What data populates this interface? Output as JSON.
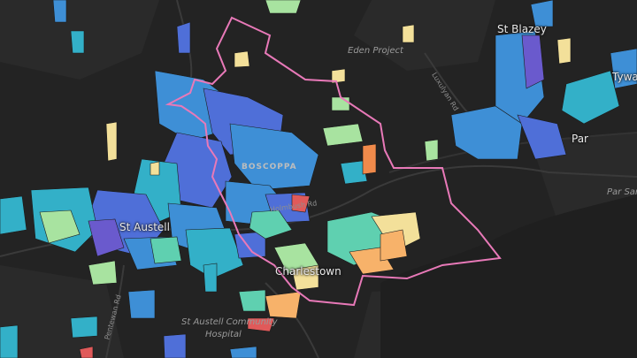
{
  "map": {
    "place_labels": {
      "st_austell": "St Austell",
      "st_blazey": "St Blazey",
      "par": "Par",
      "boscoppa": "BOSCOPPA",
      "charlestown": "Charlestown",
      "tywardreath_partial": "Tywa"
    },
    "poi_labels": {
      "eden_project": "Eden Project",
      "hospital_line1": "St Austell Community",
      "hospital_line2": "Hospital",
      "par_sands_partial": "Par San"
    },
    "road_labels": {
      "holmbush_rd": "Holmbush Rd",
      "luxulyan_rd": "Luxulyan Rd",
      "pentewan_rd": "Pentewan Rd"
    },
    "colors": {
      "background": "#232323",
      "boundary": "#e879b8",
      "choropleth_scale": [
        "#6a5acd",
        "#4f6fd8",
        "#3e8fd6",
        "#33b0c8",
        "#5fd0b0",
        "#a8e3a0",
        "#f3e09a",
        "#f7b26a",
        "#f08a4b",
        "#e05a5a"
      ]
    }
  }
}
